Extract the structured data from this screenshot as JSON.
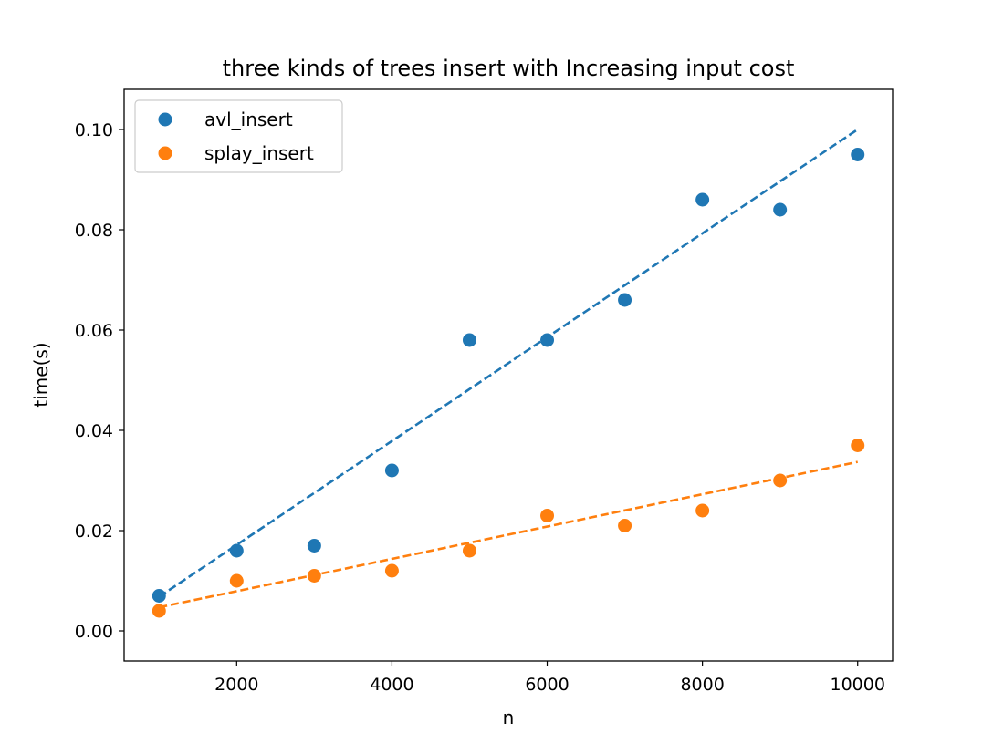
{
  "chart_data": {
    "type": "scatter",
    "title": "three kinds of trees insert with Increasing input cost",
    "xlabel": "n",
    "ylabel": "time(s)",
    "xlim": [
      550,
      10450
    ],
    "ylim": [
      -0.006,
      0.108
    ],
    "xticks": [
      2000,
      4000,
      6000,
      8000,
      10000
    ],
    "xtick_labels": [
      "2000",
      "4000",
      "6000",
      "8000",
      "10000"
    ],
    "yticks": [
      0.0,
      0.02,
      0.04,
      0.06,
      0.08,
      0.1
    ],
    "ytick_labels": [
      "0.00",
      "0.02",
      "0.04",
      "0.06",
      "0.08",
      "0.10"
    ],
    "grid": false,
    "legend_position": "top-left",
    "x": [
      1000,
      2000,
      3000,
      4000,
      5000,
      6000,
      7000,
      8000,
      9000,
      10000
    ],
    "series": [
      {
        "name": "avl_insert",
        "color": "#1f77b4",
        "values": [
          0.007,
          0.016,
          0.017,
          0.032,
          0.058,
          0.058,
          0.066,
          0.086,
          0.084,
          0.095
        ],
        "trend": [
          0.0068,
          0.1
        ]
      },
      {
        "name": "splay_insert",
        "color": "#ff7f0e",
        "values": [
          0.004,
          0.01,
          0.011,
          0.012,
          0.016,
          0.023,
          0.021,
          0.024,
          0.03,
          0.037
        ],
        "trend": [
          0.0047,
          0.0337
        ]
      }
    ]
  }
}
